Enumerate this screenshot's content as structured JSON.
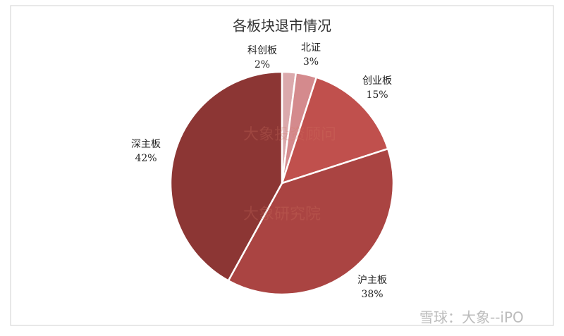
{
  "chart_data": {
    "type": "pie",
    "title": "各板块退市情况",
    "categories": [
      "科创板",
      "北证",
      "创业板",
      "沪主板",
      "深主板"
    ],
    "values": [
      2,
      3,
      15,
      38,
      42
    ],
    "value_labels": [
      "2%",
      "3%",
      "15%",
      "38%",
      "42%"
    ],
    "colors": [
      "#dba9ac",
      "#d48a8d",
      "#c0504d",
      "#aa4442",
      "#8c3634"
    ],
    "annotations": [
      "大象投资顾问",
      "大象研究院",
      "雪球：大象--iPO"
    ]
  }
}
